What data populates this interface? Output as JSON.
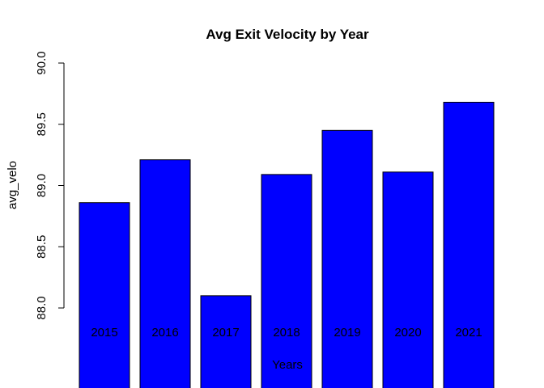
{
  "chart_data": {
    "type": "bar",
    "title": "Avg Exit Velocity by Year",
    "xlabel": "Years",
    "ylabel": "avg_velo",
    "categories": [
      "2015",
      "2016",
      "2017",
      "2018",
      "2019",
      "2020",
      "2021"
    ],
    "values": [
      88.86,
      89.21,
      88.1,
      89.09,
      89.45,
      89.11,
      89.68
    ],
    "ylim": [
      88.0,
      90.0
    ],
    "yticks": [
      "88.0",
      "88.5",
      "89.0",
      "89.5",
      "90.0"
    ],
    "bar_color": "#0000ff",
    "grid": false,
    "legend": "none"
  }
}
